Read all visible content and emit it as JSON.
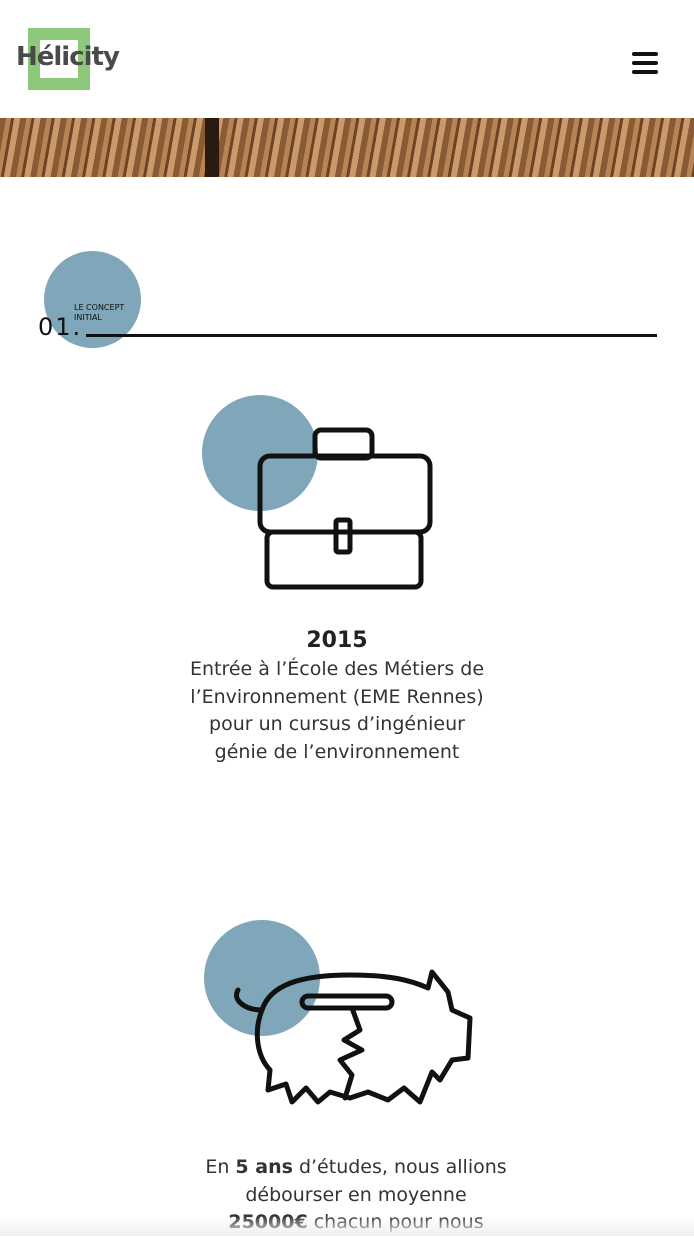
{
  "header": {
    "logo": "Hélicity"
  },
  "section": {
    "number": "01.",
    "title": "LE CONCEPT INITIAL"
  },
  "items": [
    {
      "year": "2015",
      "text": "Entrée à l’École des Métiers de l’Environnement (EME Rennes) pour un cursus d’ingénieur génie de l’environnement"
    },
    {
      "text_parts": [
        "En ",
        "5 ans",
        " d’études, nous allions débourser en moyenne ",
        "25000€",
        " chacun pour nous"
      ]
    }
  ]
}
